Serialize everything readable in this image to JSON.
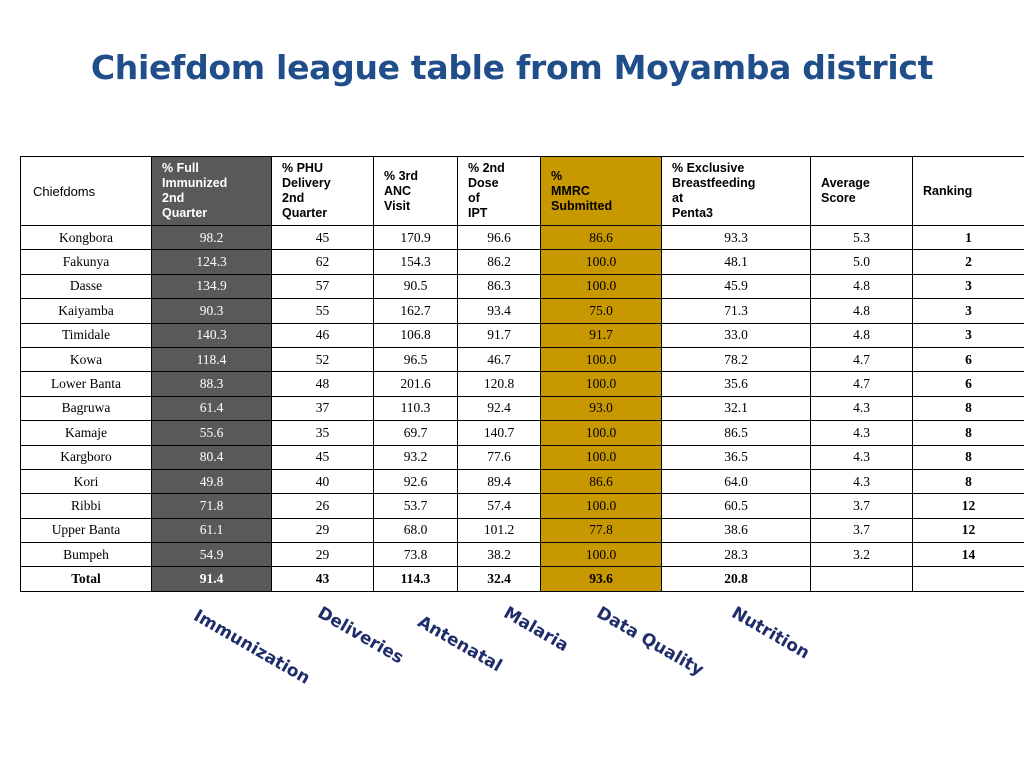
{
  "title": "Chiefdom league table from Moyamba district",
  "table": {
    "headers": [
      "Chiefdoms",
      "% Full\nImmunized\n2nd\nQuarter",
      "% PHU\nDelivery\n 2nd\nQuarter",
      "% 3rd\nANC\nVisit",
      "% 2nd\nDose\nof\nIPT",
      "%\nMMRC\nSubmitted",
      "% Exclusive\nBreastfeeding\n        at\nPenta3",
      "Average\nScore",
      "Ranking"
    ],
    "rows": [
      [
        "Kongbora",
        "98.2",
        "45",
        "170.9",
        "96.6",
        "86.6",
        "93.3",
        "5.3",
        "1"
      ],
      [
        "Fakunya",
        "124.3",
        "62",
        "154.3",
        "86.2",
        "100.0",
        "48.1",
        "5.0",
        "2"
      ],
      [
        "Dasse",
        "134.9",
        "57",
        "90.5",
        "86.3",
        "100.0",
        "45.9",
        "4.8",
        "3"
      ],
      [
        "Kaiyamba",
        "90.3",
        "55",
        "162.7",
        "93.4",
        "75.0",
        "71.3",
        "4.8",
        "3"
      ],
      [
        "Timidale",
        "140.3",
        "46",
        "106.8",
        "91.7",
        "91.7",
        "33.0",
        "4.8",
        "3"
      ],
      [
        "Kowa",
        "118.4",
        "52",
        "96.5",
        "46.7",
        "100.0",
        "78.2",
        "4.7",
        "6"
      ],
      [
        "Lower Banta",
        "88.3",
        "48",
        "201.6",
        "120.8",
        "100.0",
        "35.6",
        "4.7",
        "6"
      ],
      [
        "Bagruwa",
        "61.4",
        "37",
        "110.3",
        "92.4",
        "93.0",
        "32.1",
        "4.3",
        "8"
      ],
      [
        "Kamaje",
        "55.6",
        "35",
        "69.7",
        "140.7",
        "100.0",
        "86.5",
        "4.3",
        "8"
      ],
      [
        "Kargboro",
        "80.4",
        "45",
        "93.2",
        "77.6",
        "100.0",
        "36.5",
        "4.3",
        "8"
      ],
      [
        "Kori",
        "49.8",
        "40",
        "92.6",
        "89.4",
        "86.6",
        "64.0",
        "4.3",
        "8"
      ],
      [
        "Ribbi",
        "71.8",
        "26",
        "53.7",
        "57.4",
        "100.0",
        "60.5",
        "3.7",
        "12"
      ],
      [
        "Upper Banta",
        "61.1",
        "29",
        "68.0",
        "101.2",
        "77.8",
        "38.6",
        "3.7",
        "12"
      ],
      [
        "Bumpeh",
        "54.9",
        "29",
        "73.8",
        "38.2",
        "100.0",
        "28.3",
        "3.2",
        "14"
      ]
    ],
    "total": [
      "Total",
      "91.4",
      "43",
      "114.3",
      "32.4",
      "93.6",
      "20.8",
      "",
      ""
    ]
  },
  "category_labels": [
    "Immunization",
    "Deliveries",
    "Antenatal",
    "Malaria",
    "Data Quality",
    "Nutrition"
  ],
  "colors": {
    "title": "#1f4e8a",
    "immunization_column": "#595959",
    "mmrc_column": "#c89800",
    "category_labels": "#1f2d6b"
  }
}
